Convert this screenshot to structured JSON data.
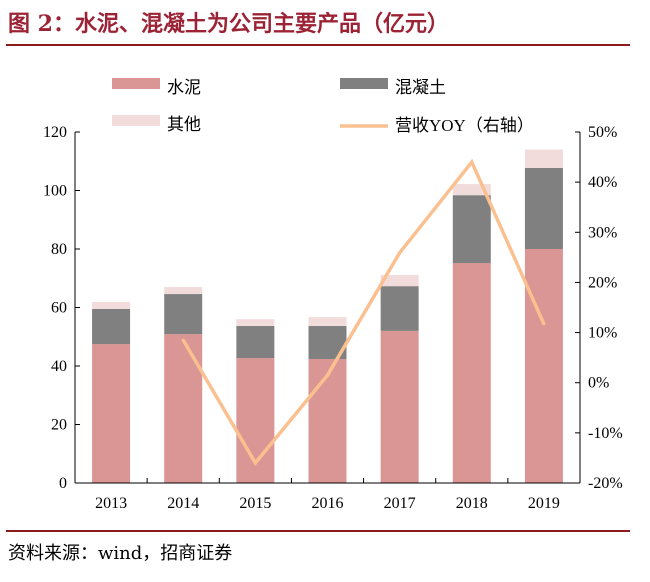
{
  "title": "图 2：水泥、混凝土为公司主要产品（亿元）",
  "source": "资料来源：wind，招商证券",
  "chart_data": {
    "type": "bar",
    "stacked": true,
    "categories": [
      "2013",
      "2014",
      "2015",
      "2016",
      "2017",
      "2018",
      "2019"
    ],
    "series": [
      {
        "name": "水泥",
        "values": [
          47.5,
          50.9,
          42.7,
          42.4,
          52.0,
          75.2,
          80.0
        ],
        "color": "#d99694"
      },
      {
        "name": "混凝土",
        "values": [
          12.0,
          13.7,
          11.0,
          11.3,
          15.3,
          23.2,
          27.7
        ],
        "color": "#808080"
      },
      {
        "name": "其他",
        "values": [
          2.4,
          2.4,
          2.3,
          3.0,
          3.8,
          3.8,
          6.3
        ],
        "color": "#f2dcdb"
      }
    ],
    "line_series": {
      "name": "营收YOY（右轴）",
      "axis": "right",
      "color": "#fac090",
      "values": [
        null,
        8.5,
        -16.0,
        1.5,
        25.9,
        44.0,
        11.7
      ]
    },
    "ylim": [
      0,
      120
    ],
    "yticks": [
      "0",
      "20",
      "40",
      "60",
      "80",
      "100",
      "120"
    ],
    "y2lim": [
      -20,
      50
    ],
    "y2ticks": [
      "-20%",
      "-10%",
      "0%",
      "10%",
      "20%",
      "30%",
      "40%",
      "50%"
    ],
    "legend": "top",
    "grid": false
  }
}
